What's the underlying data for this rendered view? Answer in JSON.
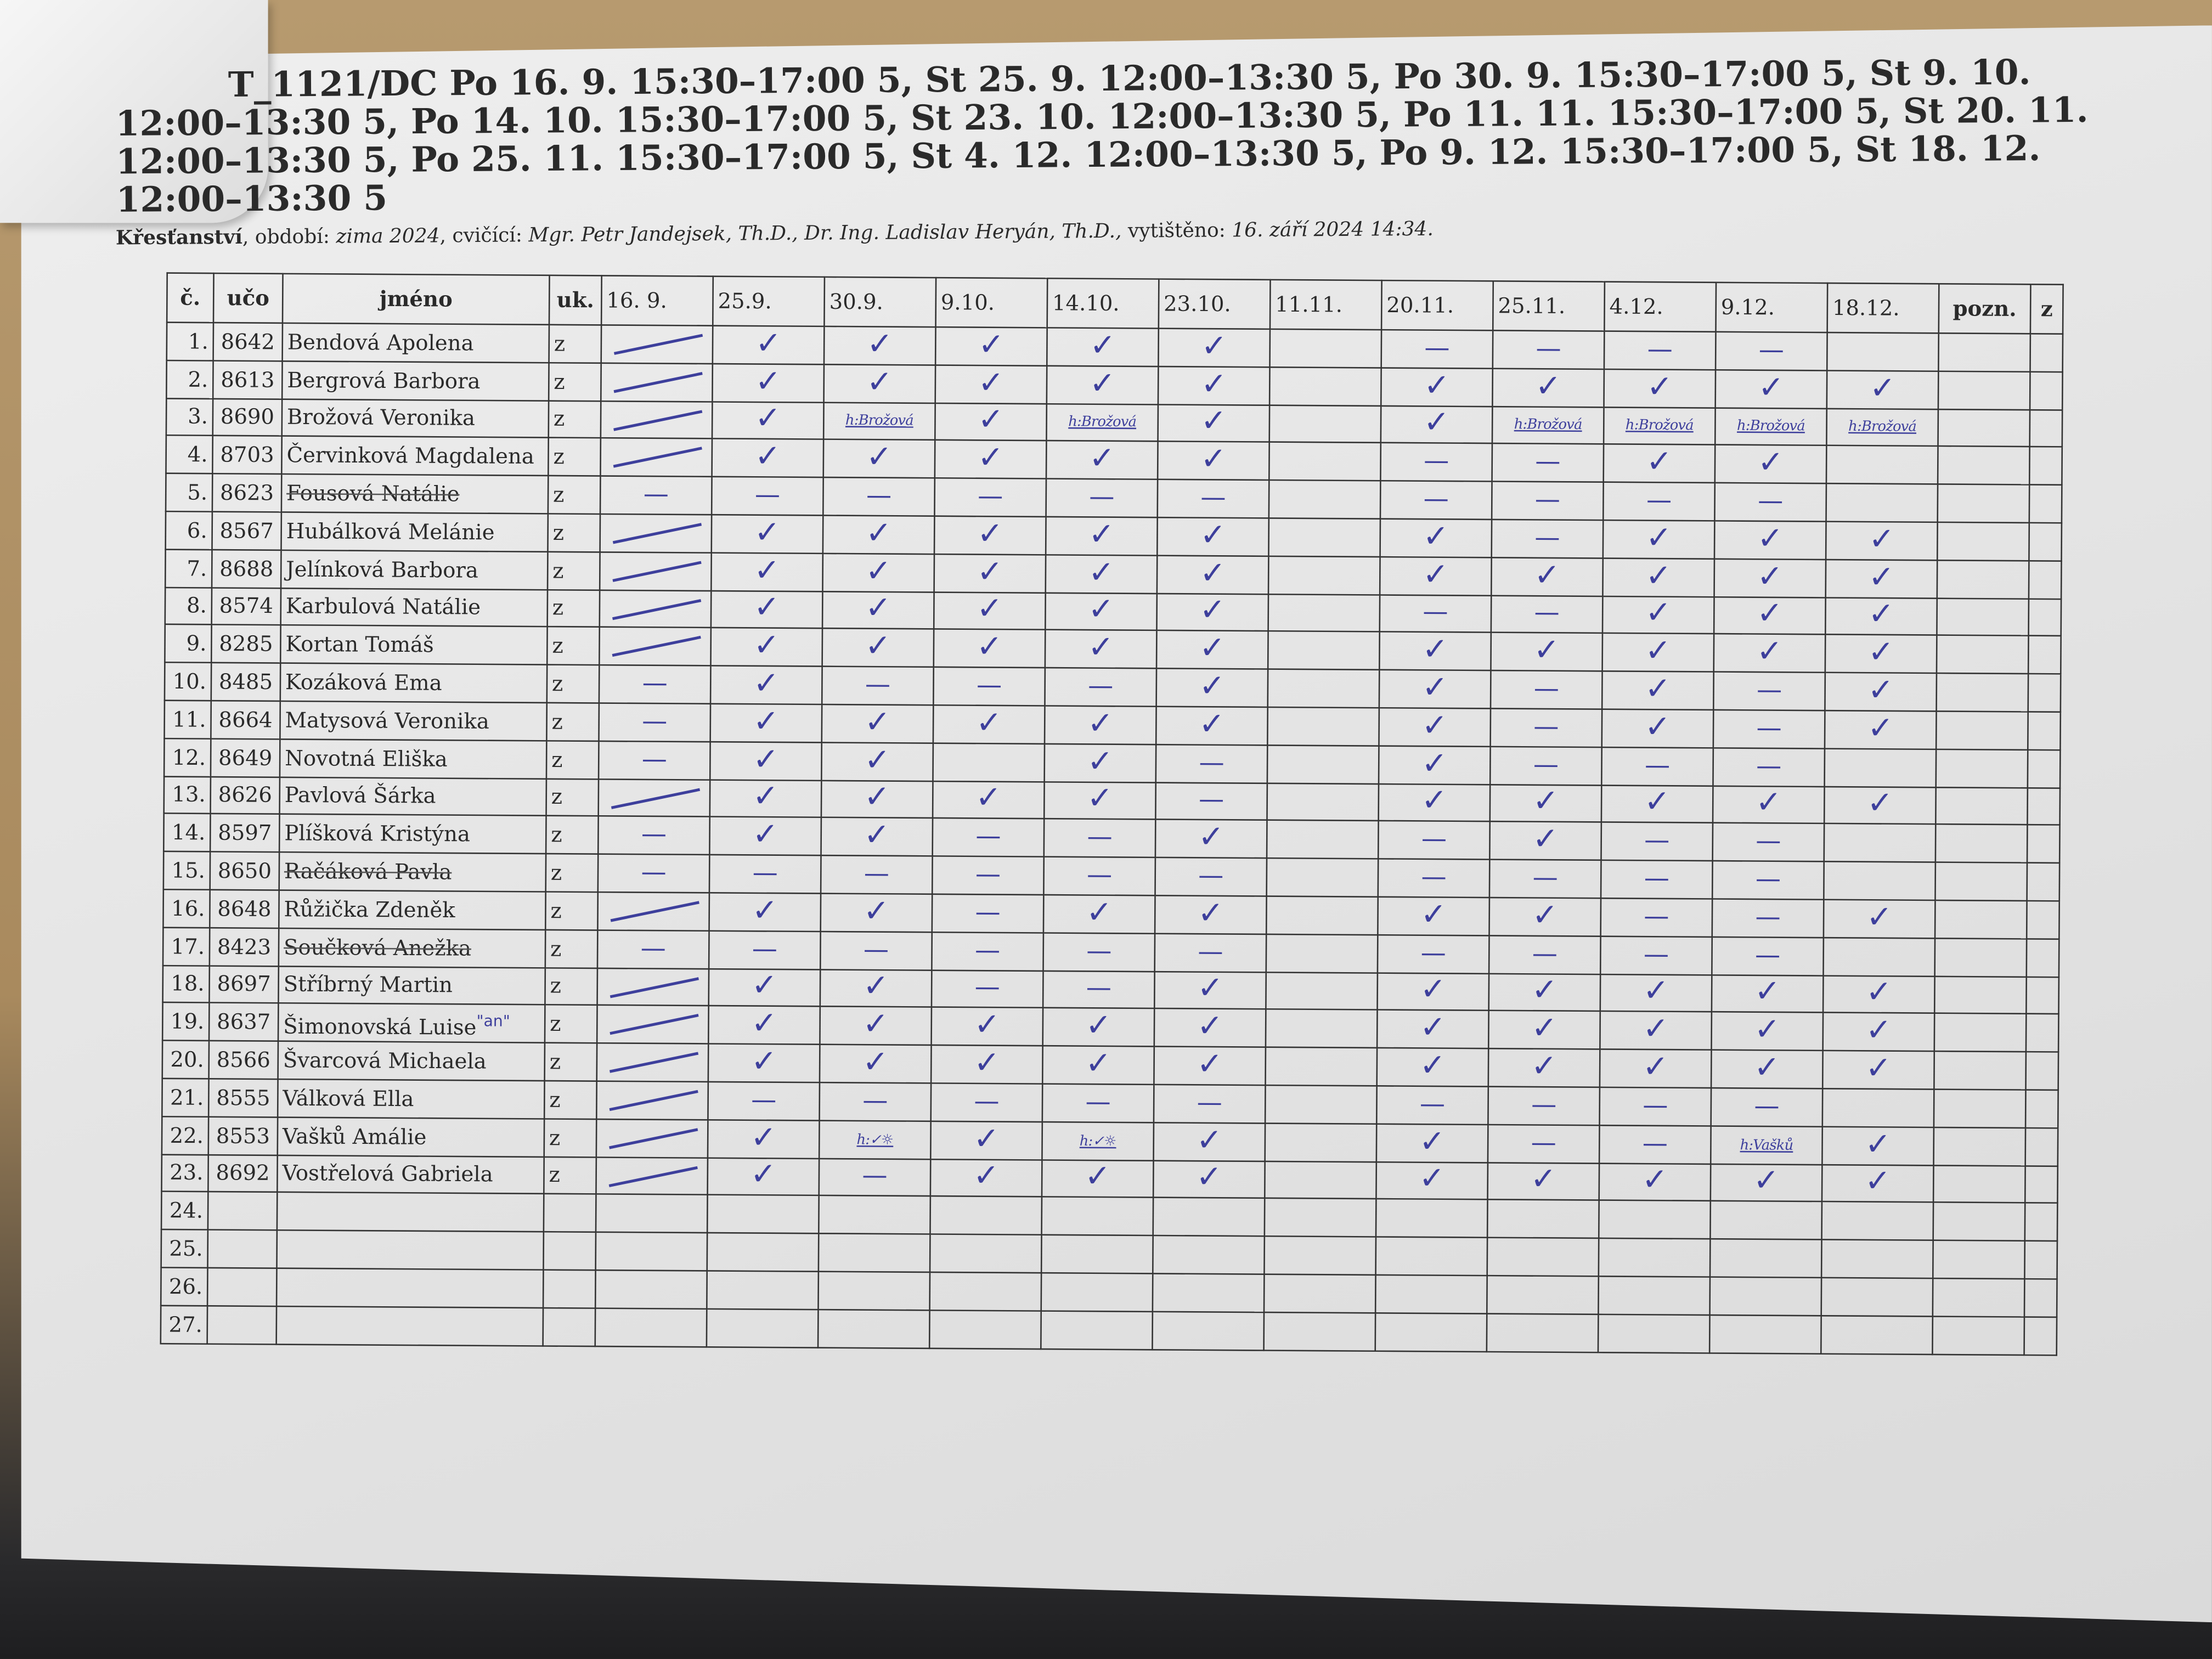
{
  "header": {
    "title": "T_1121/DC Po 16. 9. 15:30–17:00 5, St 25. 9. 12:00–13:30 5, Po 30. 9. 15:30–17:00 5, St 9. 10. 12:00–13:30 5, Po 14. 10. 15:30–17:00 5, St 23. 10. 12:00–13:30 5, Po 11. 11. 15:30–17:00 5, St 20. 11. 12:00–13:30 5, Po 25. 11. 15:30–17:00 5, St 4. 12. 12:00–13:30 5, Po 9. 12. 15:30–17:00 5, St 18. 12. 12:00–13:30 5",
    "course": "Křesťanství",
    "period_label": ", období: ",
    "period": "zima 2024",
    "teachers_label": ", cvičící: ",
    "teachers": "Mgr. Petr Jandejsek, Th.D., Dr. Ing. Ladislav Heryán, Th.D.,",
    "printed_label": "  vytištěno: ",
    "printed": "16. září 2024 14:34."
  },
  "columns": {
    "num": "č.",
    "uco": "učo",
    "name": "jméno",
    "uk": "uk.",
    "dates": [
      "16. 9.",
      "25.9.",
      "30.9.",
      "9.10.",
      "14.10.",
      "23.10.",
      "11.11.",
      "20.11.",
      "25.11.",
      "4.12.",
      "9.12.",
      "18.12."
    ],
    "pozn": "pozn.",
    "z": "z"
  },
  "colors": {
    "ink": "#3d3f9c",
    "paper": "#e6e6e6"
  },
  "mark_legend": {
    "c": "check",
    "d": "dash",
    "l": "slash-line",
    "h:<text>": "handwritten text"
  },
  "rows": [
    {
      "num": "1.",
      "uco": "8642",
      "name": "Bendová Apolena",
      "uk": "z",
      "marks": [
        "l",
        "c",
        "c",
        "c",
        "c",
        "c",
        "",
        "d",
        "d",
        "d",
        "d",
        ""
      ]
    },
    {
      "num": "2.",
      "uco": "8613",
      "name": "Bergrová Barbora",
      "uk": "z",
      "marks": [
        "l",
        "c",
        "c",
        "c",
        "c",
        "c",
        "",
        "c",
        "c",
        "c",
        "c",
        "c"
      ]
    },
    {
      "num": "3.",
      "uco": "8690",
      "name": "Brožová Veronika",
      "uk": "z",
      "marks": [
        "l",
        "c",
        "h:Brožová",
        "c",
        "h:Brožová",
        "c",
        "",
        "c",
        "h:Brožová",
        "h:Brožová",
        "h:Brožová",
        "h:Brožová"
      ]
    },
    {
      "num": "4.",
      "uco": "8703",
      "name": "Červinková Magdalena",
      "uk": "z",
      "marks": [
        "l",
        "c",
        "c",
        "c",
        "c",
        "c",
        "",
        "d",
        "d",
        "c",
        "c",
        ""
      ]
    },
    {
      "num": "5.",
      "uco": "8623",
      "name": "Fousová Natálie",
      "uk": "z",
      "struck": true,
      "marks": [
        "d",
        "d",
        "d",
        "d",
        "d",
        "d",
        "",
        "d",
        "d",
        "d",
        "d",
        ""
      ]
    },
    {
      "num": "6.",
      "uco": "8567",
      "name": "Hubálková Melánie",
      "uk": "z",
      "marks": [
        "l",
        "c",
        "c",
        "c",
        "c",
        "c",
        "",
        "c",
        "d",
        "c",
        "c",
        "c"
      ]
    },
    {
      "num": "7.",
      "uco": "8688",
      "name": "Jelínková Barbora",
      "uk": "z",
      "marks": [
        "l",
        "c",
        "c",
        "c",
        "c",
        "c",
        "",
        "c",
        "c",
        "c",
        "c",
        "c"
      ]
    },
    {
      "num": "8.",
      "uco": "8574",
      "name": "Karbulová Natálie",
      "uk": "z",
      "marks": [
        "l",
        "c",
        "c",
        "c",
        "c",
        "c",
        "",
        "d",
        "d",
        "c",
        "c",
        "c"
      ]
    },
    {
      "num": "9.",
      "uco": "8285",
      "name": "Kortan Tomáš",
      "uk": "z",
      "marks": [
        "l",
        "c",
        "c",
        "c",
        "c",
        "c",
        "",
        "c",
        "c",
        "c",
        "c",
        "c"
      ]
    },
    {
      "num": "10.",
      "uco": "8485",
      "name": "Kozáková Ema",
      "uk": "z",
      "marks": [
        "d",
        "c",
        "d",
        "d",
        "d",
        "c",
        "",
        "c",
        "d",
        "c",
        "d",
        "c"
      ]
    },
    {
      "num": "11.",
      "uco": "8664",
      "name": "Matysová Veronika",
      "uk": "z",
      "marks": [
        "d",
        "c",
        "c",
        "c",
        "c",
        "c",
        "",
        "c",
        "d",
        "c",
        "d",
        "c"
      ]
    },
    {
      "num": "12.",
      "uco": "8649",
      "name": "Novotná Eliška",
      "uk": "z",
      "marks": [
        "d",
        "c",
        "c",
        "",
        "c",
        "d",
        "",
        "c",
        "d",
        "d",
        "d",
        ""
      ]
    },
    {
      "num": "13.",
      "uco": "8626",
      "name": "Pavlová Šárka",
      "uk": "z",
      "marks": [
        "l",
        "c",
        "c",
        "c",
        "c",
        "d",
        "",
        "c",
        "c",
        "c",
        "c",
        "c"
      ]
    },
    {
      "num": "14.",
      "uco": "8597",
      "name": "Plíšková Kristýna",
      "uk": "z",
      "marks": [
        "d",
        "c",
        "c",
        "d",
        "d",
        "c",
        "",
        "d",
        "c",
        "d",
        "d",
        ""
      ]
    },
    {
      "num": "15.",
      "uco": "8650",
      "name": "Račáková Pavla",
      "uk": "z",
      "struck": true,
      "marks": [
        "d",
        "d",
        "d",
        "d",
        "d",
        "d",
        "",
        "d",
        "d",
        "d",
        "d",
        ""
      ]
    },
    {
      "num": "16.",
      "uco": "8648",
      "name": "Růžička Zdeněk",
      "uk": "z",
      "marks": [
        "l",
        "c",
        "c",
        "d",
        "c",
        "c",
        "",
        "c",
        "c",
        "d",
        "d",
        "c"
      ]
    },
    {
      "num": "17.",
      "uco": "8423",
      "name": "Součková Anežka",
      "uk": "z",
      "struck": true,
      "marks": [
        "d",
        "d",
        "d",
        "d",
        "d",
        "d",
        "",
        "d",
        "d",
        "d",
        "d",
        ""
      ]
    },
    {
      "num": "18.",
      "uco": "8697",
      "name": "Stříbrný Martin",
      "uk": "z",
      "marks": [
        "l",
        "c",
        "c",
        "d",
        "d",
        "c",
        "",
        "c",
        "c",
        "c",
        "c",
        "c"
      ]
    },
    {
      "num": "19.",
      "uco": "8637",
      "name": "Šimonovská Luise",
      "note": "\"an\"",
      "uk": "z",
      "marks": [
        "l",
        "c",
        "c",
        "c",
        "c",
        "c",
        "",
        "c",
        "c",
        "c",
        "c",
        "c"
      ]
    },
    {
      "num": "20.",
      "uco": "8566",
      "name": "Švarcová Michaela",
      "uk": "z",
      "marks": [
        "l",
        "c",
        "c",
        "c",
        "c",
        "c",
        "",
        "c",
        "c",
        "c",
        "c",
        "c"
      ]
    },
    {
      "num": "21.",
      "uco": "8555",
      "name": "Válková Ella",
      "uk": "z",
      "marks": [
        "l",
        "d",
        "d",
        "d",
        "d",
        "d",
        "",
        "d",
        "d",
        "d",
        "d",
        ""
      ]
    },
    {
      "num": "22.",
      "uco": "8553",
      "name": "Vašků Amálie",
      "uk": "z",
      "marks": [
        "l",
        "c",
        "h:✓☼",
        "c",
        "h:✓☼",
        "c",
        "",
        "c",
        "d",
        "d",
        "h:Vašků",
        "c"
      ]
    },
    {
      "num": "23.",
      "uco": "8692",
      "name": "Vostřelová Gabriela",
      "uk": "z",
      "marks": [
        "l",
        "c",
        "d",
        "c",
        "c",
        "c",
        "",
        "c",
        "c",
        "c",
        "c",
        "c"
      ]
    },
    {
      "num": "24.",
      "uco": "",
      "name": "",
      "uk": "",
      "marks": [
        "",
        "",
        "",
        "",
        "",
        "",
        "",
        "",
        "",
        "",
        "",
        ""
      ]
    },
    {
      "num": "25.",
      "uco": "",
      "name": "",
      "uk": "",
      "marks": [
        "",
        "",
        "",
        "",
        "",
        "",
        "",
        "",
        "",
        "",
        "",
        ""
      ]
    },
    {
      "num": "26.",
      "uco": "",
      "name": "",
      "uk": "",
      "marks": [
        "",
        "",
        "",
        "",
        "",
        "",
        "",
        "",
        "",
        "",
        "",
        ""
      ]
    },
    {
      "num": "27.",
      "uco": "",
      "name": "",
      "uk": "",
      "marks": [
        "",
        "",
        "",
        "",
        "",
        "",
        "",
        "",
        "",
        "",
        "",
        ""
      ]
    }
  ]
}
